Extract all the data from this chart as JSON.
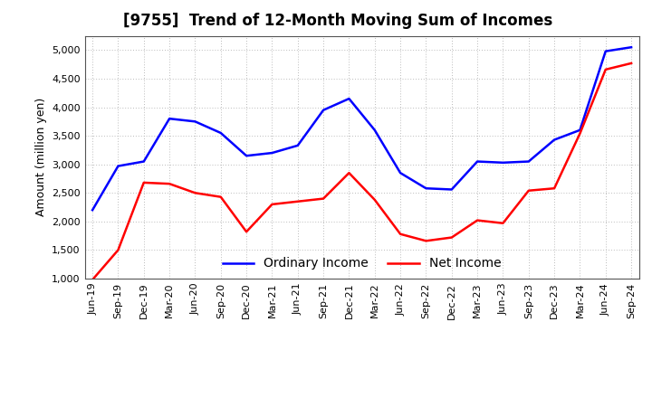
{
  "title": "[9755]  Trend of 12-Month Moving Sum of Incomes",
  "ylabel": "Amount (million yen)",
  "x_labels": [
    "Jun-19",
    "Sep-19",
    "Dec-19",
    "Mar-20",
    "Jun-20",
    "Sep-20",
    "Dec-20",
    "Mar-21",
    "Jun-21",
    "Sep-21",
    "Dec-21",
    "Mar-22",
    "Jun-22",
    "Sep-22",
    "Dec-22",
    "Mar-23",
    "Jun-23",
    "Sep-23",
    "Dec-23",
    "Mar-24",
    "Jun-24",
    "Sep-24"
  ],
  "ordinary_income": [
    2200,
    2970,
    3050,
    3800,
    3750,
    3550,
    3150,
    3200,
    3330,
    3950,
    4150,
    3600,
    2850,
    2580,
    2560,
    3050,
    3030,
    3050,
    3430,
    3600,
    4980,
    5050
  ],
  "net_income": [
    980,
    1500,
    2680,
    2660,
    2500,
    2430,
    1820,
    2300,
    2350,
    2400,
    2850,
    2380,
    1780,
    1660,
    1720,
    2020,
    1970,
    2540,
    2580,
    3540,
    4660,
    4770
  ],
  "ordinary_color": "#0000FF",
  "net_color": "#FF0000",
  "ylim": [
    1000,
    5250
  ],
  "yticks": [
    1000,
    1500,
    2000,
    2500,
    3000,
    3500,
    4000,
    4500,
    5000
  ],
  "background_color": "#FFFFFF",
  "grid_color": "#BBBBBB",
  "title_fontsize": 12,
  "axis_fontsize": 9,
  "tick_fontsize": 8,
  "legend_fontsize": 10
}
